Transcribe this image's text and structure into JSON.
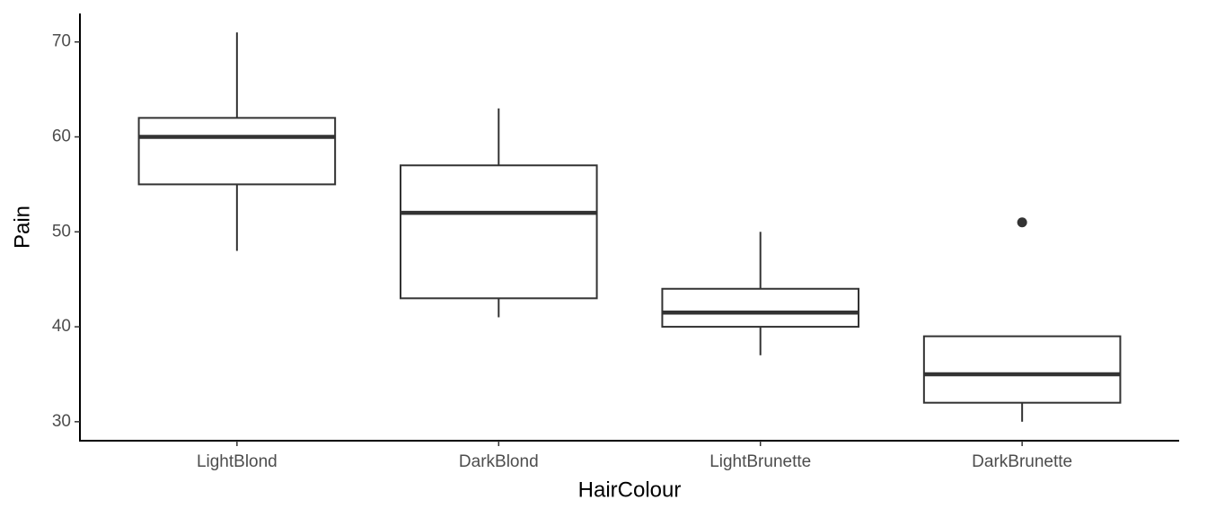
{
  "chart_data": {
    "type": "box",
    "x_label": "HairColour",
    "y_label": "Pain",
    "categories": [
      "LightBlond",
      "DarkBlond",
      "LightBrunette",
      "DarkBrunette"
    ],
    "boxes": [
      {
        "min": 48,
        "q1": 55,
        "median": 60,
        "q3": 62,
        "max": 71,
        "outliers": []
      },
      {
        "min": 41,
        "q1": 43,
        "median": 52,
        "q3": 57,
        "max": 63,
        "outliers": []
      },
      {
        "min": 37,
        "q1": 40,
        "median": 41.5,
        "q3": 44,
        "max": 50,
        "outliers": []
      },
      {
        "min": 30,
        "q1": 32,
        "median": 35,
        "q3": 39,
        "max": 39,
        "outliers": [
          51
        ]
      }
    ],
    "color": "#333333",
    "fill": "#ffffff",
    "ylim": [
      28,
      73
    ],
    "yticks": [
      30,
      40,
      50,
      60,
      70
    ]
  }
}
